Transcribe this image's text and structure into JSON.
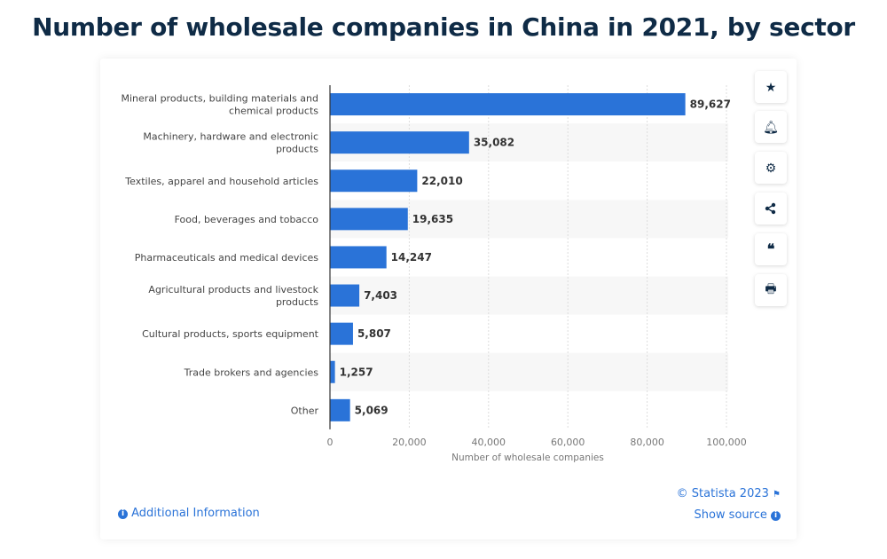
{
  "title": "Number of wholesale companies in China in 2021, by sector",
  "chart_data": {
    "type": "bar",
    "orientation": "horizontal",
    "categories": [
      "Mineral products, building materials and|chemical products",
      "Machinery, hardware and electronic|products",
      "Textiles, apparel and household articles",
      "Food, beverages and tobacco",
      "Pharmaceuticals and medical devices",
      "Agricultural products and livestock|products",
      "Cultural products, sports equipment",
      "Trade brokers and agencies",
      "Other"
    ],
    "values": [
      89627,
      35082,
      22010,
      19635,
      14247,
      7403,
      5807,
      1257,
      5069
    ],
    "data_labels": [
      "89,627",
      "35,082",
      "22,010",
      "19,635",
      "14,247",
      "7,403",
      "5,807",
      "1,257",
      "5,069"
    ],
    "xlabel": "Number of wholesale companies",
    "xlim": [
      0,
      100000
    ],
    "ticks": [
      0,
      20000,
      40000,
      60000,
      80000,
      100000
    ],
    "tick_labels": [
      "0",
      "20,000",
      "40,000",
      "60,000",
      "80,000",
      "100,000"
    ],
    "grid": true,
    "bar_color": "#2a73d8"
  },
  "footer": {
    "copyright": "© Statista 2023",
    "show_source": "Show source",
    "additional_info": "Additional Information"
  },
  "sidebar_icons": [
    "star-icon",
    "bell-icon",
    "gear-icon",
    "share-icon",
    "quote-icon",
    "print-icon"
  ]
}
